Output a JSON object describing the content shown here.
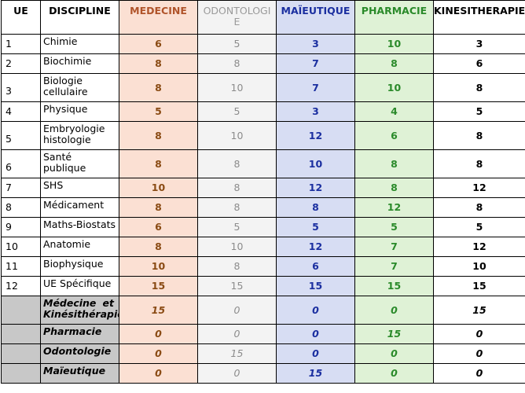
{
  "headers": [
    "UE",
    "DISCIPLINE",
    "MEDECINE",
    "ODONTOLOGIE",
    "MAÏEUTIQUE",
    "PHARMACIE",
    "KINESITHERAPIE"
  ],
  "header_odonto_lines": [
    "ODONTOLOGI",
    "E"
  ],
  "rows": [
    {
      "ue": "1",
      "lines": [
        "Chimie"
      ],
      "vals": [
        "6",
        "5",
        "3",
        "10",
        "3"
      ]
    },
    {
      "ue": "2",
      "lines": [
        "Biochimie"
      ],
      "vals": [
        "8",
        "8",
        "7",
        "8",
        "6"
      ]
    },
    {
      "ue": "3",
      "lines": [
        "Biologie",
        "cellulaire"
      ],
      "vals": [
        "8",
        "10",
        "7",
        "10",
        "8"
      ]
    },
    {
      "ue": "4",
      "lines": [
        "Physique"
      ],
      "vals": [
        "5",
        "5",
        "3",
        "4",
        "5"
      ]
    },
    {
      "ue": "5",
      "lines": [
        "Embryologie",
        "histologie"
      ],
      "vals": [
        "8",
        "10",
        "12",
        "6",
        "8"
      ]
    },
    {
      "ue": "6",
      "lines": [
        "Santé",
        "publique"
      ],
      "vals": [
        "8",
        "8",
        "10",
        "8",
        "8"
      ]
    },
    {
      "ue": "7",
      "lines": [
        "SHS"
      ],
      "vals": [
        "10",
        "8",
        "12",
        "8",
        "12"
      ]
    },
    {
      "ue": "8",
      "lines": [
        "Médicament"
      ],
      "vals": [
        "8",
        "8",
        "8",
        "12",
        "8"
      ]
    },
    {
      "ue": "9",
      "lines": [
        "Maths-Biostats"
      ],
      "vals": [
        "6",
        "5",
        "5",
        "5",
        "5"
      ]
    },
    {
      "ue": "10",
      "lines": [
        "Anatomie"
      ],
      "vals": [
        "8",
        "10",
        "12",
        "7",
        "12"
      ]
    },
    {
      "ue": "11",
      "lines": [
        "Biophysique"
      ],
      "vals": [
        "10",
        "8",
        "6",
        "7",
        "10"
      ]
    },
    {
      "ue": "12",
      "lines": [
        "UE Spécifique"
      ],
      "vals": [
        "15",
        "15",
        "15",
        "15",
        "15"
      ]
    }
  ],
  "specific_rows": [
    {
      "lines": [
        "Médecine et",
        "Kinésithérapie"
      ],
      "vals": [
        "15",
        "0",
        "0",
        "0",
        "15"
      ]
    },
    {
      "lines": [
        "Pharmacie"
      ],
      "vals": [
        "0",
        "0",
        "0",
        "15",
        "0"
      ]
    },
    {
      "lines": [
        "Odontologie"
      ],
      "vals": [
        "0",
        "15",
        "0",
        "0",
        "0"
      ]
    },
    {
      "lines": [
        "Maïeutique"
      ],
      "vals": [
        "0",
        "0",
        "15",
        "0",
        "0"
      ]
    }
  ]
}
